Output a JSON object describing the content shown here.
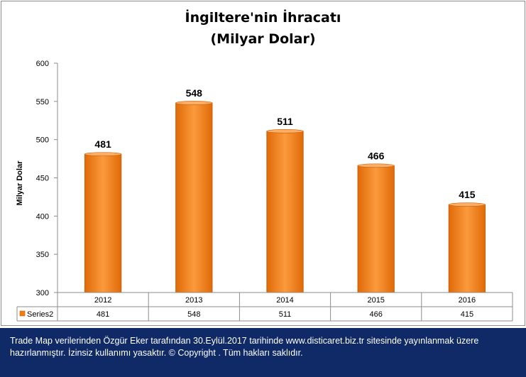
{
  "chart_data": {
    "type": "bar",
    "title": "İngiltere'nin İhracatı",
    "subtitle": "(Milyar Dolar)",
    "ylabel": "Milyar Dolar",
    "xlabel": "",
    "categories": [
      "2012",
      "2013",
      "2014",
      "2015",
      "2016"
    ],
    "series": [
      {
        "name": "Series2",
        "values": [
          481,
          548,
          511,
          466,
          415
        ]
      }
    ],
    "ylim": [
      300,
      600
    ],
    "yticks": [
      "300",
      "350",
      "400",
      "450",
      "500",
      "550",
      "600"
    ],
    "data_labels": [
      "481",
      "548",
      "511",
      "466",
      "415"
    ],
    "table_values": [
      "481",
      "548",
      "511",
      "466",
      "415"
    ],
    "grid": false,
    "legend": "data-table",
    "bar_color": "#f07c14"
  },
  "footer": {
    "text": "Trade Map verilerinden Özgür Eker tarafından 30.Eylül.2017  tarihinde www.disticaret.biz.tr  sitesinde yayınlanmak üzere hazırlanmıştır. İzinsiz kullanımı yasaktır. © Copyright .  Tüm hakları saklıdır."
  }
}
